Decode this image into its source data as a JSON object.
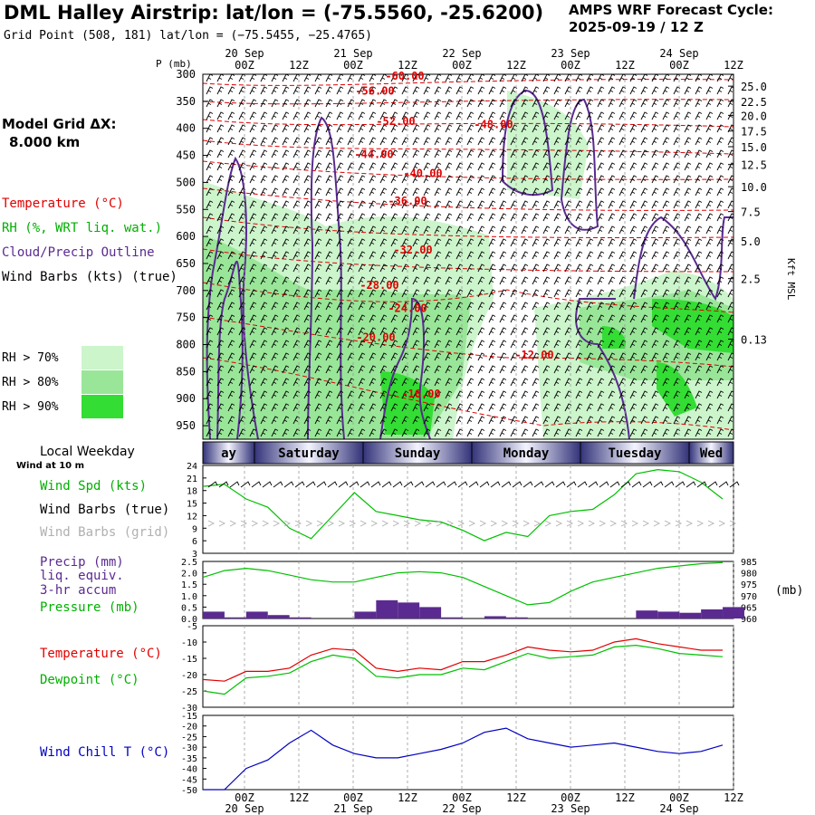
{
  "header": {
    "title": "DML Halley Airstrip:  lat/lon = (-75.5560, -25.6200)",
    "grid_point": "Grid Point (508, 181) lat/lon = (−75.5455, −25.4765)",
    "cycle_line1": "AMPS WRF Forecast Cycle:",
    "cycle_line2": "2025-09-19 / 12  Z"
  },
  "left_panel": {
    "pressure_axis_label": "P (mb)",
    "model_grid_line1": "Model Grid ΔX:",
    "model_grid_line2": "8.000 km",
    "legend_temperature": "Temperature (°C)",
    "legend_rh": "RH (%, WRT liq. wat.)",
    "legend_cloud": "Cloud/Precip Outline",
    "legend_wind": "Wind Barbs (kts) (true)",
    "rh_gt70": "RH > 70%",
    "rh_gt80": "RH > 80%",
    "rh_gt90": "RH > 90%",
    "local_weekday": "Local Weekday",
    "wind_at_10m": "Wind at 10 m",
    "wind_spd": "Wind Spd (kts)",
    "wind_barbs_true": "Wind Barbs (true)",
    "wind_barbs_grid": "Wind Barbs (grid)",
    "precip_line1": "Precip (mm)",
    "precip_line2": "liq. equiv.",
    "precip_line3": "3-hr accum",
    "pressure": "Pressure (mb)",
    "temperature": "Temperature (°C)",
    "dewpoint": "Dewpoint (°C)",
    "wind_chill": "Wind Chill T (°C)"
  },
  "right_axis": {
    "kft_label": "Kft MSL",
    "mb_label": "(mb)"
  },
  "colors": {
    "temperature": "#e00000",
    "rh": "#00c000",
    "cloud": "#5a2a90",
    "wind": "#000000",
    "wind_grid": "#b0b0b0",
    "precip": "#5a2a90",
    "pressure": "#00c000",
    "dewpoint": "#00c000",
    "wind_chill": "#0000c0",
    "rh70": "#ccf5cc",
    "rh80": "#99e699",
    "rh90": "#33dd33"
  },
  "chart_data": [
    {
      "type": "heatmap",
      "title": "Time-height cross section",
      "x_ticks_top_time": [
        "00Z",
        "12Z",
        "00Z",
        "12Z",
        "00Z",
        "12Z",
        "00Z",
        "12Z",
        "00Z",
        "12Z"
      ],
      "x_ticks_top_date": [
        "20 Sep",
        "21 Sep",
        "22 Sep",
        "23 Sep",
        "24 Sep"
      ],
      "y_pressure_ticks": [
        "300",
        "350",
        "400",
        "450",
        "500",
        "550",
        "600",
        "650",
        "700",
        "750",
        "800",
        "850",
        "900",
        "950"
      ],
      "y_height_ticks": [
        "25.0",
        "22.5",
        "20.0",
        "17.5",
        "15.0",
        "12.5",
        "10.0",
        "7.5",
        "5.0",
        "2.5",
        "0.13"
      ],
      "ylabel_left": "P (mb)",
      "ylabel_right": "Kft MSL",
      "temperature_contour_labels": [
        "-56.00",
        "-60.00",
        "-52.00",
        "-48.00",
        "-44.00",
        "-40.00",
        "-36.00",
        "-32.00",
        "-28.00",
        "-24.00",
        "-20.00",
        "-12.00",
        "-16.00"
      ]
    },
    {
      "type": "line",
      "title": "",
      "weekdays": [
        "ay",
        "Saturday",
        "Sunday",
        "Monday",
        "Tuesday",
        "Wed"
      ],
      "ylabel": "Wind Spd (kts)",
      "y_ticks": [
        "24",
        "21",
        "18",
        "15",
        "12",
        "9",
        "6",
        "3"
      ],
      "ylim": [
        3,
        24
      ],
      "x_hours": [
        0,
        6,
        12,
        18,
        24,
        30,
        36,
        42,
        48,
        54,
        60,
        66,
        72,
        78,
        84,
        90,
        96,
        102,
        108,
        114,
        120,
        126,
        132,
        138,
        144
      ],
      "series": [
        {
          "name": "Wind Spd (kts)",
          "values": [
            19,
            19.5,
            16,
            14,
            9,
            6.5,
            12,
            17.5,
            13,
            12,
            11,
            10.5,
            8.5,
            6,
            8,
            7,
            12,
            13,
            13.5,
            17,
            22,
            23,
            22.5,
            20,
            16
          ]
        }
      ]
    },
    {
      "type": "bar",
      "title": "",
      "y_ticks_left": [
        "2.5",
        "2.0",
        "1.5",
        "1.0",
        "0.5",
        "0.0"
      ],
      "y_ticks_right": [
        "985",
        "980",
        "975",
        "970",
        "965",
        "960"
      ],
      "ylim_left": [
        0,
        2.5
      ],
      "ylim_right": [
        960,
        985
      ],
      "x_hours": [
        0,
        6,
        12,
        18,
        24,
        30,
        36,
        42,
        48,
        54,
        60,
        66,
        72,
        78,
        84,
        90,
        96,
        102,
        108,
        114,
        120,
        126,
        132,
        138,
        144
      ],
      "series": [
        {
          "name": "Precip (mm)",
          "values": [
            0.3,
            0.05,
            0.3,
            0.15,
            0.05,
            0,
            0,
            0.3,
            0.8,
            0.7,
            0.5,
            0.05,
            0,
            0.1,
            0.05,
            0,
            0,
            0,
            0,
            0,
            0.35,
            0.3,
            0.25,
            0.4,
            0.5
          ]
        },
        {
          "name": "Pressure (mb)",
          "values": [
            978,
            981,
            982,
            981,
            979,
            977,
            976,
            976,
            978,
            980,
            980.5,
            980,
            978,
            974,
            970,
            966,
            967,
            972,
            976,
            978,
            980,
            982,
            983,
            984,
            984.5
          ]
        }
      ]
    },
    {
      "type": "line",
      "title": "",
      "y_ticks": [
        "-5",
        "-10",
        "-15",
        "-20",
        "-25",
        "-30"
      ],
      "ylim": [
        -30,
        -5
      ],
      "x_hours": [
        0,
        6,
        12,
        18,
        24,
        30,
        36,
        42,
        48,
        54,
        60,
        66,
        72,
        78,
        84,
        90,
        96,
        102,
        108,
        114,
        120,
        126,
        132,
        138,
        144
      ],
      "series": [
        {
          "name": "Temperature (°C)",
          "values": [
            -21.5,
            -22,
            -19,
            -19,
            -18,
            -14,
            -12,
            -12.5,
            -18,
            -19,
            -18,
            -18.5,
            -16,
            -16,
            -14,
            -11.5,
            -12.5,
            -13,
            -12.5,
            -10,
            -9,
            -10.5,
            -11.5,
            -12.5,
            -12.5
          ]
        },
        {
          "name": "Dewpoint (°C)",
          "values": [
            -25,
            -26,
            -21,
            -20.5,
            -19.5,
            -16,
            -14,
            -15,
            -20.5,
            -21,
            -20,
            -20,
            -18,
            -18.5,
            -16,
            -13.5,
            -15,
            -14.5,
            -14,
            -11.5,
            -11,
            -12,
            -13.5,
            -14,
            -14.5
          ]
        }
      ]
    },
    {
      "type": "line",
      "title": "",
      "ylabel": "Wind Chill T (°C)",
      "y_ticks": [
        "-15",
        "-20",
        "-25",
        "-30",
        "-35",
        "-40",
        "-45",
        "-50"
      ],
      "ylim": [
        -50,
        -15
      ],
      "x_ticks_bottom_time": [
        "00Z",
        "12Z",
        "00Z",
        "12Z",
        "00Z",
        "12Z",
        "00Z",
        "12Z",
        "00Z",
        "12Z"
      ],
      "x_ticks_bottom_date": [
        "20 Sep",
        "21 Sep",
        "22 Sep",
        "23 Sep",
        "24 Sep"
      ],
      "x_hours": [
        0,
        6,
        12,
        18,
        24,
        30,
        36,
        42,
        48,
        54,
        60,
        66,
        72,
        78,
        84,
        90,
        96,
        102,
        108,
        114,
        120,
        126,
        132,
        138,
        144
      ],
      "series": [
        {
          "name": "Wind Chill T (°C)",
          "values": [
            -50,
            -50,
            -40,
            -36,
            -28,
            -22,
            -29,
            -33,
            -35,
            -35,
            -33,
            -31,
            -28,
            -23,
            -21,
            -26,
            -28,
            -30,
            -29,
            -28,
            -30,
            -32,
            -33,
            -32,
            -29
          ]
        }
      ]
    }
  ]
}
